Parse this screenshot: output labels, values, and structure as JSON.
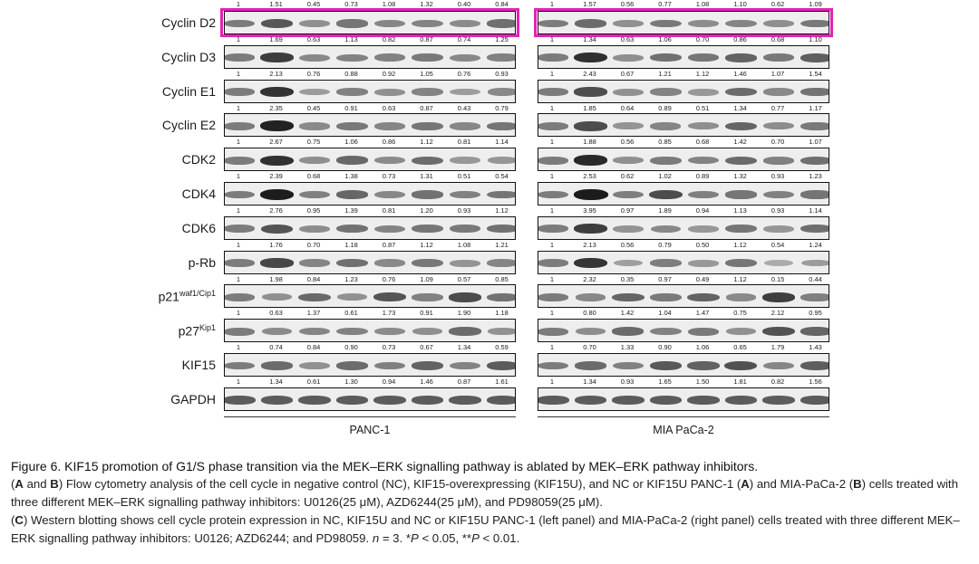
{
  "panels": [
    {
      "cell_line": "PANC-1"
    },
    {
      "cell_line": "MIA PaCa-2"
    }
  ],
  "top_quant": {
    "PANC-1": [
      "1",
      "1.51",
      "0.45",
      "0.73",
      "1.08",
      "1.32",
      "0.40",
      "0.84"
    ],
    "MIA PaCa-2": [
      "1",
      "1.57",
      "0.56",
      "0.77",
      "1.08",
      "1.10",
      "0.62",
      "1.09"
    ]
  },
  "rows": [
    {
      "label": "Cyclin D2",
      "sup": "",
      "highlight": true,
      "quant": {
        "PANC-1": [
          "1",
          "1.69",
          "0.63",
          "1.13",
          "0.82",
          "0.87",
          "0.74",
          "1.25"
        ],
        "MIA PaCa-2": [
          "1",
          "1.34",
          "0.63",
          "1.06",
          "0.70",
          "0.86",
          "0.68",
          "1.10"
        ]
      }
    },
    {
      "label": "Cyclin D3",
      "sup": "",
      "quant": {
        "PANC-1": [
          "1",
          "2.13",
          "0.76",
          "0.88",
          "0.92",
          "1.05",
          "0.76",
          "0.93"
        ],
        "MIA PaCa-2": [
          "1",
          "2.43",
          "0.67",
          "1.21",
          "1.12",
          "1.46",
          "1.07",
          "1.54"
        ]
      }
    },
    {
      "label": "Cyclin E1",
      "sup": "",
      "quant": {
        "PANC-1": [
          "1",
          "2.35",
          "0.45",
          "0.91",
          "0.63",
          "0.87",
          "0.43",
          "0.79"
        ],
        "MIA PaCa-2": [
          "1",
          "1.85",
          "0.64",
          "0.89",
          "0.51",
          "1.34",
          "0.77",
          "1.17"
        ]
      }
    },
    {
      "label": "Cyclin E2",
      "sup": "",
      "quant": {
        "PANC-1": [
          "1",
          "2.67",
          "0.75",
          "1.06",
          "0.86",
          "1.12",
          "0.81",
          "1.14"
        ],
        "MIA PaCa-2": [
          "1",
          "1.88",
          "0.56",
          "0.85",
          "0.68",
          "1.42",
          "0.70",
          "1.07"
        ]
      }
    },
    {
      "label": "CDK2",
      "sup": "",
      "quant": {
        "PANC-1": [
          "1",
          "2.39",
          "0.68",
          "1.38",
          "0.73",
          "1.31",
          "0.51",
          "0.54"
        ],
        "MIA PaCa-2": [
          "1",
          "2.53",
          "0.62",
          "1.02",
          "0.89",
          "1.32",
          "0.93",
          "1.23"
        ]
      }
    },
    {
      "label": "CDK4",
      "sup": "",
      "quant": {
        "PANC-1": [
          "1",
          "2.76",
          "0.95",
          "1.39",
          "0.81",
          "1.20",
          "0.93",
          "1.12"
        ],
        "MIA PaCa-2": [
          "1",
          "3.95",
          "0.97",
          "1.89",
          "0.94",
          "1.13",
          "0.93",
          "1.14"
        ]
      }
    },
    {
      "label": "CDK6",
      "sup": "",
      "quant": {
        "PANC-1": [
          "1",
          "1.76",
          "0.70",
          "1.18",
          "0.87",
          "1.12",
          "1.08",
          "1.21"
        ],
        "MIA PaCa-2": [
          "1",
          "2.13",
          "0.56",
          "0.79",
          "0.50",
          "1.12",
          "0.54",
          "1.24"
        ]
      }
    },
    {
      "label": "p-Rb",
      "sup": "",
      "quant": {
        "PANC-1": [
          "1",
          "1.98",
          "0.84",
          "1.23",
          "0.76",
          "1.09",
          "0.57",
          "0.85"
        ],
        "MIA PaCa-2": [
          "1",
          "2.32",
          "0.35",
          "0.97",
          "0.49",
          "1.12",
          "0.15",
          "0.44"
        ]
      }
    },
    {
      "label": "p21",
      "sup": "waf1/Cip1",
      "quant": {
        "PANC-1": [
          "1",
          "0.63",
          "1.37",
          "0.61",
          "1.73",
          "0.91",
          "1.90",
          "1.18"
        ],
        "MIA PaCa-2": [
          "1",
          "0.80",
          "1.42",
          "1.04",
          "1.47",
          "0.75",
          "2.12",
          "0.95"
        ]
      }
    },
    {
      "label": "p27",
      "sup": "Kip1",
      "quant": {
        "PANC-1": [
          "1",
          "0.74",
          "0.84",
          "0.90",
          "0.73",
          "0.67",
          "1.34",
          "0.59"
        ],
        "MIA PaCa-2": [
          "1",
          "0.70",
          "1.33",
          "0.90",
          "1.06",
          "0.65",
          "1.79",
          "1.43"
        ]
      }
    },
    {
      "label": "KIF15",
      "sup": "",
      "quant": {
        "PANC-1": [
          "1",
          "1.34",
          "0.61",
          "1.30",
          "0.94",
          "1.46",
          "0.87",
          "1.61"
        ],
        "MIA PaCa-2": [
          "1",
          "1.34",
          "0.93",
          "1.65",
          "1.50",
          "1.81",
          "0.82",
          "1.56"
        ]
      }
    },
    {
      "label": "GAPDH",
      "sup": ""
    }
  ],
  "colors": {
    "highlight": "#e024b4",
    "band": "#1c1c1c",
    "blot_bg": "#eeeeee"
  },
  "caption": {
    "title": "Figure 6. KIF15 promotion of G1/S phase transition via the MEK–ERK signalling pathway is ablated by MEK–ERK pathway inhibitors.",
    "ab_label_a": "A",
    "ab_and": " and ",
    "ab_label_b": "B",
    "ab_part1": ") Flow cytometry analysis of the cell cycle in negative control (NC), KIF15-overexpressing (KIF15U), and NC or KIF15U PANC-1 (",
    "ab_part2": ") and MIA-PaCa-2 (",
    "ab_part3": ") cells treated with three different MEK–ERK signalling pathway inhibitors: U0126(25 μM), AZD6244(25 μM), and PD98059(25 μM).",
    "c_label": "C",
    "c_part1": ") Western blotting shows cell cycle protein expression in NC, KIF15U and NC or KIF15U PANC-1 (left panel) and MIA-PaCa-2 (right panel) cells treated with three different MEK–ERK signalling pathway inhibitors: U0126; AZD6244; and PD98059. ",
    "n_sym": "n",
    "c_part2": " = 3. *",
    "p_sym": "P",
    "c_part3": " < 0.05, **",
    "c_part4": " < 0.01."
  }
}
